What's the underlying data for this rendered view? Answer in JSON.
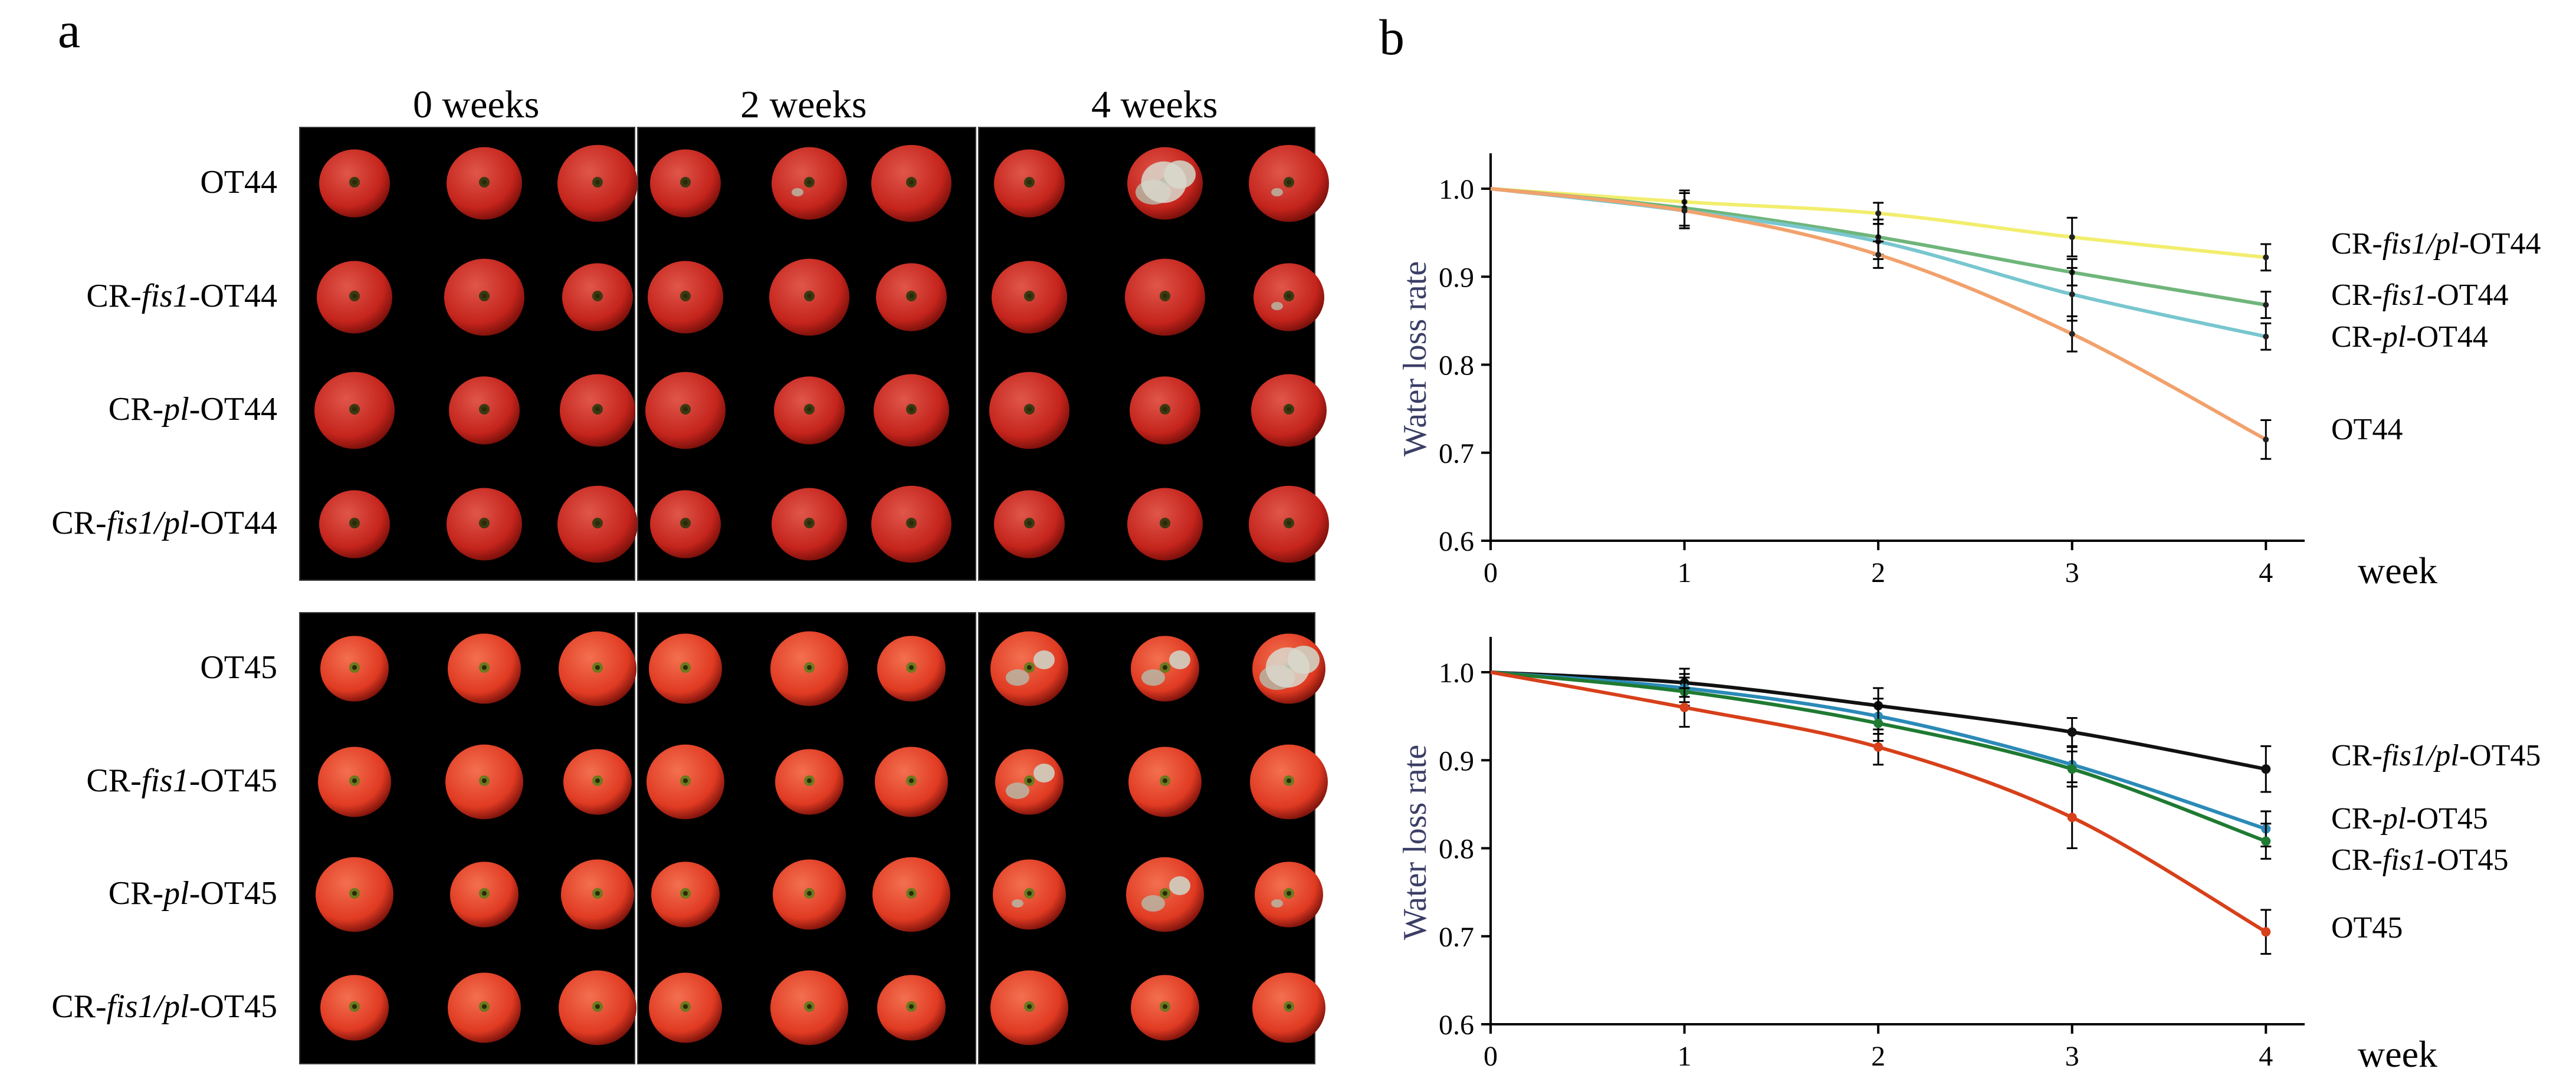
{
  "panel_a": {
    "letter": "a",
    "week_headers": [
      "0 weeks",
      "2 weeks",
      "4 weeks"
    ],
    "groups": [
      {
        "line": "OT44",
        "rows": [
          {
            "prefix": "",
            "italic": "",
            "suffix": "OT44",
            "decay": [
              0,
              0,
              0,
              0,
              1,
              0,
              0,
              3,
              1
            ]
          },
          {
            "prefix": "CR-",
            "italic": "fis1",
            "suffix": "-OT44",
            "decay": [
              0,
              0,
              0,
              0,
              0,
              0,
              0,
              0,
              1
            ]
          },
          {
            "prefix": "CR-",
            "italic": "pl",
            "suffix": "-OT44",
            "decay": [
              0,
              0,
              0,
              0,
              0,
              0,
              0,
              0,
              0
            ]
          },
          {
            "prefix": "CR-",
            "italic": "fis1/pl",
            "suffix": "-OT44",
            "decay": [
              0,
              0,
              0,
              0,
              0,
              0,
              0,
              0,
              0
            ]
          }
        ]
      },
      {
        "line": "OT45",
        "rows": [
          {
            "prefix": "",
            "italic": "",
            "suffix": "OT45",
            "decay": [
              0,
              0,
              0,
              0,
              0,
              0,
              2,
              2,
              3
            ]
          },
          {
            "prefix": "CR-",
            "italic": "fis1",
            "suffix": "-OT45",
            "decay": [
              0,
              0,
              0,
              0,
              0,
              0,
              2,
              0,
              0
            ]
          },
          {
            "prefix": "CR-",
            "italic": "pl",
            "suffix": "-OT45",
            "decay": [
              0,
              0,
              0,
              0,
              0,
              0,
              1,
              2,
              1
            ]
          },
          {
            "prefix": "CR-",
            "italic": "fis1/pl",
            "suffix": "-OT45",
            "decay": [
              0,
              0,
              0,
              0,
              0,
              0,
              0,
              0,
              0
            ]
          }
        ]
      }
    ]
  },
  "panel_b": {
    "letter": "b"
  },
  "chart_data": [
    {
      "type": "line",
      "title": "",
      "ylabel": "Water loss rate",
      "xlabel": "week",
      "x": [
        0,
        1,
        2,
        3,
        4
      ],
      "xticks": [
        "0",
        "1",
        "2",
        "3",
        "4"
      ],
      "yticks": [
        "0.6",
        "0.7",
        "0.8",
        "0.9",
        "1.0"
      ],
      "ylim": [
        0.6,
        1.05
      ],
      "xlim": [
        0,
        4.2
      ],
      "series": [
        {
          "prefix": "CR-",
          "italic": "fis1/pl",
          "suffix": "-OT44",
          "name": "CR-fis1/pl-OT44",
          "color": "#f2ee6e",
          "values": [
            1.0,
            0.985,
            0.972,
            0.945,
            0.922
          ],
          "errors": [
            0,
            0.01,
            0.012,
            0.022,
            0.015
          ],
          "markers": false
        },
        {
          "prefix": "CR-",
          "italic": "fis1",
          "suffix": "-OT44",
          "name": "CR-fis1-OT44",
          "color": "#6fb57a",
          "values": [
            1.0,
            0.978,
            0.945,
            0.905,
            0.868
          ],
          "errors": [
            0,
            0.02,
            0.02,
            0.015,
            0.015
          ],
          "markers": false
        },
        {
          "prefix": "CR-",
          "italic": "pl",
          "suffix": "-OT44",
          "name": "CR-pl-OT44",
          "color": "#78c6cf",
          "values": [
            1.0,
            0.975,
            0.94,
            0.88,
            0.832
          ],
          "errors": [
            0,
            0.02,
            0.02,
            0.03,
            0.015
          ],
          "markers": false
        },
        {
          "prefix": "",
          "italic": "",
          "suffix": "OT44",
          "name": "OT44",
          "color": "#f2a16c",
          "values": [
            1.0,
            0.975,
            0.925,
            0.835,
            0.715
          ],
          "errors": [
            0,
            0.02,
            0.015,
            0.02,
            0.022
          ],
          "markers": false
        }
      ]
    },
    {
      "type": "line",
      "title": "",
      "ylabel": "Water loss rate",
      "xlabel": "week",
      "x": [
        0,
        1,
        2,
        3,
        4
      ],
      "xticks": [
        "0",
        "1",
        "2",
        "3",
        "4"
      ],
      "yticks": [
        "0.6",
        "0.7",
        "0.8",
        "0.9",
        "1.0"
      ],
      "ylim": [
        0.6,
        1.05
      ],
      "xlim": [
        0,
        4.2
      ],
      "series": [
        {
          "prefix": "CR-",
          "italic": "fis1/pl",
          "suffix": "-OT45",
          "name": "CR-fis1/pl-OT45",
          "color": "#111111",
          "values": [
            1.0,
            0.988,
            0.962,
            0.932,
            0.89
          ],
          "errors": [
            0,
            0.016,
            0.02,
            0.016,
            0.026
          ],
          "markers": true
        },
        {
          "prefix": "CR-",
          "italic": "pl",
          "suffix": "-OT45",
          "name": "CR-pl-OT45",
          "color": "#2b8ab8",
          "values": [
            1.0,
            0.982,
            0.95,
            0.895,
            0.822
          ],
          "errors": [
            0,
            0.016,
            0.02,
            0.02,
            0.02
          ],
          "markers": true
        },
        {
          "prefix": "CR-",
          "italic": "fis1",
          "suffix": "-OT45",
          "name": "CR-fis1-OT45",
          "color": "#1f7a32",
          "values": [
            1.0,
            0.978,
            0.942,
            0.89,
            0.808
          ],
          "errors": [
            0,
            0.016,
            0.02,
            0.02,
            0.02
          ],
          "markers": true
        },
        {
          "prefix": "",
          "italic": "",
          "suffix": "OT45",
          "name": "OT45",
          "color": "#d7401a",
          "values": [
            1.0,
            0.96,
            0.915,
            0.835,
            0.705
          ],
          "errors": [
            0,
            0.022,
            0.02,
            0.035,
            0.025
          ],
          "markers": true
        }
      ]
    }
  ]
}
